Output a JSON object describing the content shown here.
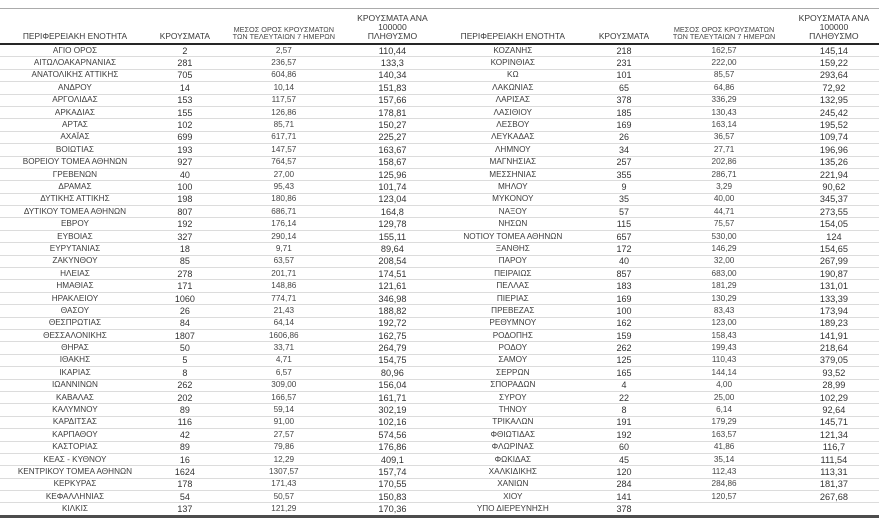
{
  "headers": {
    "region": "ΠΕΡΙΦΕΡΕΙΑΚΗ ΕΝΟΤΗΤΑ",
    "cases": "ΚΡΟΥΣΜΑΤΑ",
    "avg7": "ΜΕΣΟΣ ΟΡΟΣ ΚΡΟΥΣΜΑΤΩΝ\nΤΩΝ ΤΕΛΕΥΤΑΙΩΝ 7 ΗΜΕΡΩΝ",
    "per100k": "ΚΡΟΥΣΜΑΤΑ ΑΝΑ 100000\nΠΛΗΘΥΣΜΟ"
  },
  "tables": {
    "left": {
      "rows": [
        [
          "ΑΓΙΟ ΟΡΟΣ",
          "2",
          "2,57",
          "110,44"
        ],
        [
          "ΑΙΤΩΛΟΑΚΑΡΝΑΝΙΑΣ",
          "281",
          "236,57",
          "133,3"
        ],
        [
          "ΑΝΑΤΟΛΙΚΗΣ ΑΤΤΙΚΗΣ",
          "705",
          "604,86",
          "140,34"
        ],
        [
          "ΑΝΔΡΟΥ",
          "14",
          "10,14",
          "151,83"
        ],
        [
          "ΑΡΓΟΛΙΔΑΣ",
          "153",
          "117,57",
          "157,66"
        ],
        [
          "ΑΡΚΑΔΙΑΣ",
          "155",
          "126,86",
          "178,81"
        ],
        [
          "ΑΡΤΑΣ",
          "102",
          "85,71",
          "150,27"
        ],
        [
          "ΑΧΑΪΑΣ",
          "699",
          "617,71",
          "225,27"
        ],
        [
          "ΒΟΙΩΤΙΑΣ",
          "193",
          "147,57",
          "163,67"
        ],
        [
          "ΒΟΡΕΙΟΥ ΤΟΜΕΑ ΑΘΗΝΩΝ",
          "927",
          "764,57",
          "158,67"
        ],
        [
          "ΓΡΕΒΕΝΩΝ",
          "40",
          "27,00",
          "125,96"
        ],
        [
          "ΔΡΑΜΑΣ",
          "100",
          "95,43",
          "101,74"
        ],
        [
          "ΔΥΤΙΚΗΣ ΑΤΤΙΚΗΣ",
          "198",
          "180,86",
          "123,04"
        ],
        [
          "ΔΥΤΙΚΟΥ ΤΟΜΕΑ ΑΘΗΝΩΝ",
          "807",
          "686,71",
          "164,8"
        ],
        [
          "ΕΒΡΟΥ",
          "192",
          "176,14",
          "129,78"
        ],
        [
          "ΕΥΒΟΙΑΣ",
          "327",
          "290,14",
          "155,11"
        ],
        [
          "ΕΥΡΥΤΑΝΙΑΣ",
          "18",
          "9,71",
          "89,64"
        ],
        [
          "ΖΑΚΥΝΘΟΥ",
          "85",
          "63,57",
          "208,54"
        ],
        [
          "ΗΛΕΙΑΣ",
          "278",
          "201,71",
          "174,51"
        ],
        [
          "ΗΜΑΘΙΑΣ",
          "171",
          "148,86",
          "121,61"
        ],
        [
          "ΗΡΑΚΛΕΙΟΥ",
          "1060",
          "774,71",
          "346,98"
        ],
        [
          "ΘΑΣΟΥ",
          "26",
          "21,43",
          "188,82"
        ],
        [
          "ΘΕΣΠΡΩΤΙΑΣ",
          "84",
          "64,14",
          "192,72"
        ],
        [
          "ΘΕΣΣΑΛΟΝΙΚΗΣ",
          "1807",
          "1606,86",
          "162,75"
        ],
        [
          "ΘΗΡΑΣ",
          "50",
          "33,71",
          "264,79"
        ],
        [
          "ΙΘΑΚΗΣ",
          "5",
          "4,71",
          "154,75"
        ],
        [
          "ΙΚΑΡΙΑΣ",
          "8",
          "6,57",
          "80,96"
        ],
        [
          "ΙΩΑΝΝΙΝΩΝ",
          "262",
          "309,00",
          "156,04"
        ],
        [
          "ΚΑΒΑΛΑΣ",
          "202",
          "166,57",
          "161,71"
        ],
        [
          "ΚΑΛΥΜΝΟΥ",
          "89",
          "59,14",
          "302,19"
        ],
        [
          "ΚΑΡΔΙΤΣΑΣ",
          "116",
          "91,00",
          "102,16"
        ],
        [
          "ΚΑΡΠΑΘΟΥ",
          "42",
          "27,57",
          "574,56"
        ],
        [
          "ΚΑΣΤΟΡΙΑΣ",
          "89",
          "79,86",
          "176,86"
        ],
        [
          "ΚΕΑΣ - ΚΥΘΝΟΥ",
          "16",
          "12,29",
          "409,1"
        ],
        [
          "ΚΕΝΤΡΙΚΟΥ ΤΟΜΕΑ ΑΘΗΝΩΝ",
          "1624",
          "1307,57",
          "157,74"
        ],
        [
          "ΚΕΡΚΥΡΑΣ",
          "178",
          "171,43",
          "170,55"
        ],
        [
          "ΚΕΦΑΛΛΗΝΙΑΣ",
          "54",
          "50,57",
          "150,83"
        ],
        [
          "ΚΙΛΚΙΣ",
          "137",
          "121,29",
          "170,36"
        ]
      ]
    },
    "right": {
      "rows": [
        [
          "ΚΟΖΑΝΗΣ",
          "218",
          "162,57",
          "145,14"
        ],
        [
          "ΚΟΡΙΝΘΙΑΣ",
          "231",
          "222,00",
          "159,22"
        ],
        [
          "ΚΩ",
          "101",
          "85,57",
          "293,64"
        ],
        [
          "ΛΑΚΩΝΙΑΣ",
          "65",
          "64,86",
          "72,92"
        ],
        [
          "ΛΑΡΙΣΑΣ",
          "378",
          "336,29",
          "132,95"
        ],
        [
          "ΛΑΣΙΘΙΟΥ",
          "185",
          "130,43",
          "245,42"
        ],
        [
          "ΛΕΣΒΟΥ",
          "169",
          "163,14",
          "195,52"
        ],
        [
          "ΛΕΥΚΑΔΑΣ",
          "26",
          "36,57",
          "109,74"
        ],
        [
          "ΛΗΜΝΟΥ",
          "34",
          "27,71",
          "196,96"
        ],
        [
          "ΜΑΓΝΗΣΙΑΣ",
          "257",
          "202,86",
          "135,26"
        ],
        [
          "ΜΕΣΣΗΝΙΑΣ",
          "355",
          "286,71",
          "221,94"
        ],
        [
          "ΜΗΛΟΥ",
          "9",
          "3,29",
          "90,62"
        ],
        [
          "ΜΥΚΟΝΟΥ",
          "35",
          "40,00",
          "345,37"
        ],
        [
          "ΝΑΞΟΥ",
          "57",
          "44,71",
          "273,55"
        ],
        [
          "ΝΗΣΩΝ",
          "115",
          "75,57",
          "154,05"
        ],
        [
          "ΝΟΤΙΟΥ ΤΟΜΕΑ ΑΘΗΝΩΝ",
          "657",
          "530,00",
          "124"
        ],
        [
          "ΞΑΝΘΗΣ",
          "172",
          "146,29",
          "154,65"
        ],
        [
          "ΠΑΡΟΥ",
          "40",
          "32,00",
          "267,99"
        ],
        [
          "ΠΕΙΡΑΙΩΣ",
          "857",
          "683,00",
          "190,87"
        ],
        [
          "ΠΕΛΛΑΣ",
          "183",
          "181,29",
          "131,01"
        ],
        [
          "ΠΙΕΡΙΑΣ",
          "169",
          "130,29",
          "133,39"
        ],
        [
          "ΠΡΕΒΕΖΑΣ",
          "100",
          "83,43",
          "173,94"
        ],
        [
          "ΡΕΘΥΜΝΟΥ",
          "162",
          "123,00",
          "189,23"
        ],
        [
          "ΡΟΔΟΠΗΣ",
          "159",
          "158,43",
          "141,91"
        ],
        [
          "ΡΟΔΟΥ",
          "262",
          "199,43",
          "218,64"
        ],
        [
          "ΣΑΜΟΥ",
          "125",
          "110,43",
          "379,05"
        ],
        [
          "ΣΕΡΡΩΝ",
          "165",
          "144,14",
          "93,52"
        ],
        [
          "ΣΠΟΡΑΔΩΝ",
          "4",
          "4,00",
          "28,99"
        ],
        [
          "ΣΥΡΟΥ",
          "22",
          "25,00",
          "102,29"
        ],
        [
          "ΤΗΝΟΥ",
          "8",
          "6,14",
          "92,64"
        ],
        [
          "ΤΡΙΚΑΛΩΝ",
          "191",
          "179,29",
          "145,71"
        ],
        [
          "ΦΘΙΩΤΙΔΑΣ",
          "192",
          "163,57",
          "121,34"
        ],
        [
          "ΦΛΩΡΙΝΑΣ",
          "60",
          "41,86",
          "116,7"
        ],
        [
          "ΦΩΚΙΔΑΣ",
          "45",
          "35,14",
          "111,54"
        ],
        [
          "ΧΑΛΚΙΔΙΚΗΣ",
          "120",
          "112,43",
          "113,31"
        ],
        [
          "ΧΑΝΙΩΝ",
          "284",
          "284,86",
          "181,37"
        ],
        [
          "ΧΙΟΥ",
          "141",
          "120,57",
          "267,68"
        ],
        [
          "ΥΠΟ ΔΙΕΡΕΥΝΗΣΗ",
          "378",
          "",
          ""
        ]
      ]
    }
  }
}
